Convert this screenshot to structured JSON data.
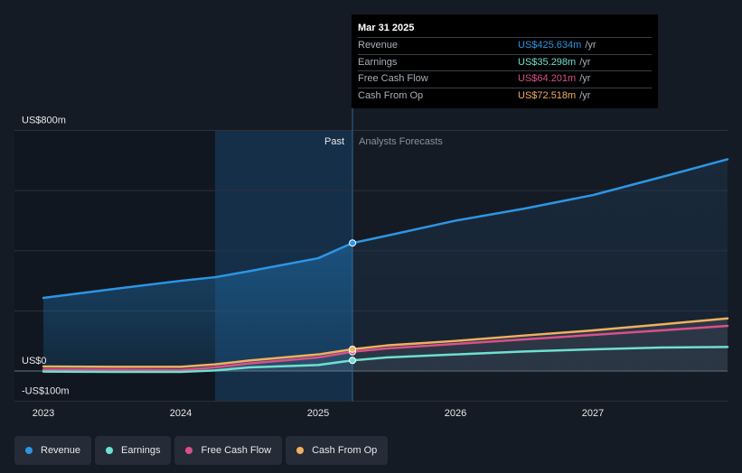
{
  "tooltip": {
    "date": "Mar 31 2025",
    "rows": [
      {
        "label": "Revenue",
        "value": "US$425.634m",
        "unit": "/yr",
        "color": "#2d95e3"
      },
      {
        "label": "Earnings",
        "value": "US$35.298m",
        "unit": "/yr",
        "color": "#6ee0d0"
      },
      {
        "label": "Free Cash Flow",
        "value": "US$64.201m",
        "unit": "/yr",
        "color": "#d9508a"
      },
      {
        "label": "Cash From Op",
        "value": "US$72.518m",
        "unit": "/yr",
        "color": "#f0b060"
      }
    ]
  },
  "legend": [
    {
      "label": "Revenue",
      "color": "#2d95e3"
    },
    {
      "label": "Earnings",
      "color": "#6ee0d0"
    },
    {
      "label": "Free Cash Flow",
      "color": "#d9508a"
    },
    {
      "label": "Cash From Op",
      "color": "#f0b060"
    }
  ],
  "chart_data": {
    "type": "line",
    "title": "",
    "xlabel": "",
    "ylabel": "",
    "ylim": [
      -100,
      800
    ],
    "xlim": [
      2023.0,
      2027.98
    ],
    "y_tick_labels": [
      {
        "value": 800,
        "label": "US$800m"
      },
      {
        "value": 0,
        "label": "US$0"
      },
      {
        "value": -100,
        "label": "-US$100m"
      }
    ],
    "x_ticks": [
      {
        "value": 2023,
        "label": "2023"
      },
      {
        "value": 2024,
        "label": "2024"
      },
      {
        "value": 2025,
        "label": "2025"
      },
      {
        "value": 2026,
        "label": "2026"
      },
      {
        "value": 2027,
        "label": "2027"
      }
    ],
    "gridlines": [
      800,
      600,
      400,
      200,
      0,
      -100
    ],
    "past_label": "Past",
    "forecast_label": "Analysts Forecasts",
    "divider_x": 2025.25,
    "highlight_start": 2024.25,
    "marker_x": 2025.25,
    "series": [
      {
        "name": "Revenue",
        "color": "#2d95e3",
        "x": [
          2023.0,
          2023.5,
          2024.0,
          2024.25,
          2024.5,
          2025.0,
          2025.25,
          2025.5,
          2026.0,
          2026.5,
          2027.0,
          2027.5,
          2027.98
        ],
        "values": [
          243,
          272,
          300,
          312,
          332,
          375,
          425.6,
          450,
          500,
          540,
          585,
          645,
          704
        ]
      },
      {
        "name": "Earnings",
        "color": "#6ee0d0",
        "x": [
          2023.0,
          2023.5,
          2024.0,
          2024.25,
          2024.5,
          2025.0,
          2025.25,
          2025.5,
          2026.0,
          2026.5,
          2027.0,
          2027.5,
          2027.98
        ],
        "values": [
          -2,
          -3,
          -3,
          2,
          12,
          20,
          35.3,
          45,
          55,
          65,
          72,
          78,
          80
        ]
      },
      {
        "name": "Free Cash Flow",
        "color": "#d9508a",
        "x": [
          2023.0,
          2023.5,
          2024.0,
          2024.25,
          2024.5,
          2025.0,
          2025.25,
          2025.5,
          2026.0,
          2026.5,
          2027.0,
          2027.5,
          2027.98
        ],
        "values": [
          5,
          4,
          3,
          12,
          25,
          45,
          64.2,
          75,
          90,
          105,
          120,
          135,
          150
        ]
      },
      {
        "name": "Cash From Op",
        "color": "#f0b060",
        "x": [
          2023.0,
          2023.5,
          2024.0,
          2024.25,
          2024.5,
          2025.0,
          2025.25,
          2025.5,
          2026.0,
          2026.5,
          2027.0,
          2027.5,
          2027.98
        ],
        "values": [
          15,
          14,
          14,
          22,
          35,
          55,
          72.5,
          85,
          100,
          118,
          135,
          155,
          175
        ]
      }
    ]
  }
}
